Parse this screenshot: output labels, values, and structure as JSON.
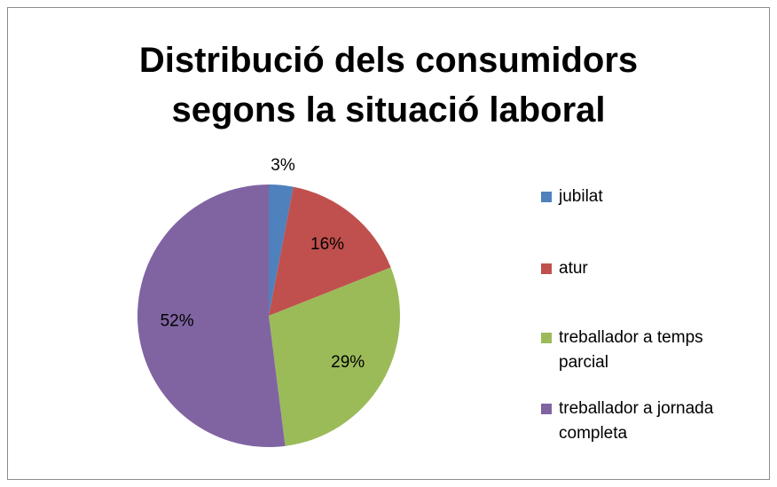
{
  "chart_data": {
    "type": "pie",
    "title": "Distribució dels consumidors segons la situació laboral",
    "categories": [
      "jubilat",
      "atur",
      "treballador a temps parcial",
      "treballador a jornada completa"
    ],
    "values": [
      3,
      16,
      29,
      52
    ],
    "value_labels": [
      "3%",
      "16%",
      "29%",
      "52%"
    ],
    "colors": [
      "#4f81bd",
      "#c0504d",
      "#9bbb59",
      "#8064a2"
    ],
    "legend": "right"
  }
}
